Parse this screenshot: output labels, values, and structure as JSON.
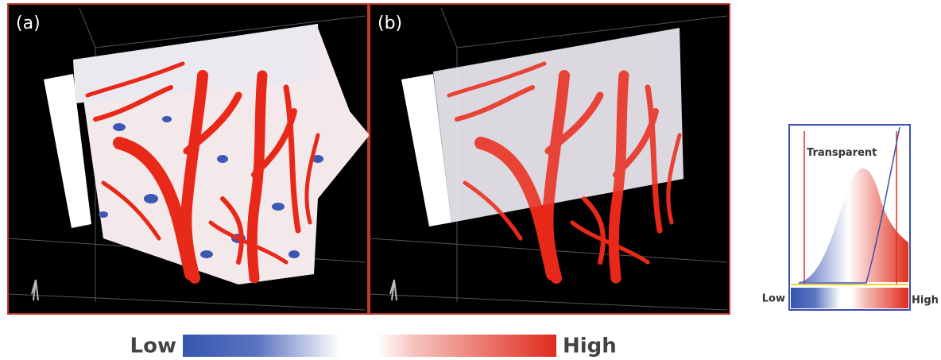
{
  "panels": [
    {
      "label": "(a)"
    },
    {
      "label": "(b)"
    }
  ],
  "colorbar": {
    "low": "Low",
    "high": "High"
  },
  "inset": {
    "annotation": "Transparent",
    "low": "Low",
    "high": "High"
  }
}
